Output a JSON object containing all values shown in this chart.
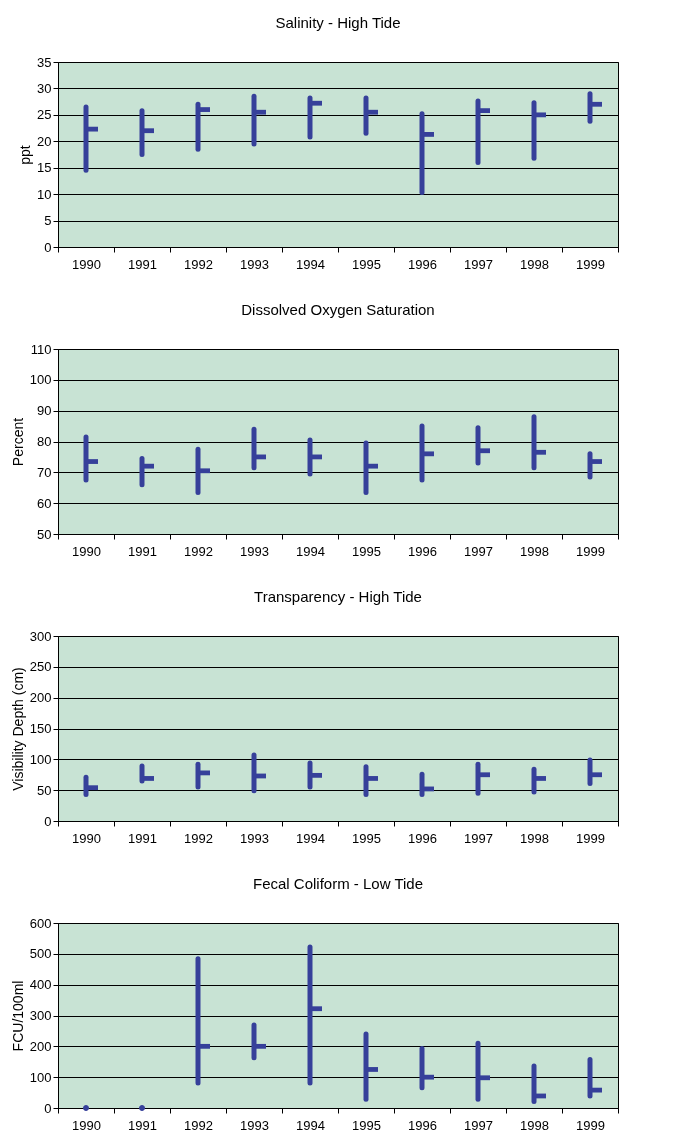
{
  "chart_data": [
    {
      "type": "scatter",
      "title": "Salinity - High Tide",
      "ylabel": "ppt",
      "categories": [
        "1990",
        "1991",
        "1992",
        "1993",
        "1994",
        "1995",
        "1996",
        "1997",
        "1998",
        "1999"
      ],
      "values": [
        22.3,
        22,
        26,
        25.5,
        27.2,
        25.5,
        21.3,
        25.8,
        25,
        27
      ],
      "errors": [
        [
          14.5,
          26.5
        ],
        [
          17.5,
          25.8
        ],
        [
          18.5,
          27
        ],
        [
          19.5,
          28.5
        ],
        [
          20.8,
          28.2
        ],
        [
          21.5,
          28.2
        ],
        [
          10.3,
          25.2
        ],
        [
          16,
          27.6
        ],
        [
          16.8,
          27.3
        ],
        [
          23.8,
          29
        ]
      ],
      "color": "#36409a",
      "ylim": [
        0,
        35
      ],
      "yticks": [
        0,
        5,
        10,
        15,
        20,
        25,
        30,
        35
      ],
      "grid": "y",
      "legend": false
    },
    {
      "type": "scatter",
      "title": "Dissolved Oxygen Saturation",
      "ylabel": "Percent",
      "categories": [
        "1990",
        "1991",
        "1992",
        "1993",
        "1994",
        "1995",
        "1996",
        "1997",
        "1998",
        "1999"
      ],
      "values": [
        73.5,
        72,
        70.5,
        75,
        75,
        72,
        76,
        77,
        76.5,
        73.5
      ],
      "errors": [
        [
          67.5,
          81.5
        ],
        [
          66,
          74.5
        ],
        [
          63.5,
          77.5
        ],
        [
          71.5,
          84
        ],
        [
          69.5,
          80.5
        ],
        [
          63.5,
          79.5
        ],
        [
          67.5,
          85
        ],
        [
          73,
          84.5
        ],
        [
          71.5,
          88
        ],
        [
          68.5,
          76
        ]
      ],
      "color": "#36409a",
      "ylim": [
        50,
        110
      ],
      "yticks": [
        50,
        60,
        70,
        80,
        90,
        100,
        110
      ],
      "grid": "y",
      "legend": false
    },
    {
      "type": "scatter",
      "title": "Transparency - High Tide",
      "ylabel": "Visibility Depth (cm)",
      "categories": [
        "1990",
        "1991",
        "1992",
        "1993",
        "1994",
        "1995",
        "1996",
        "1997",
        "1998",
        "1999"
      ],
      "values": [
        54,
        69,
        78,
        73,
        74,
        69,
        52,
        75,
        69,
        75
      ],
      "errors": [
        [
          43,
          71
        ],
        [
          65,
          89
        ],
        [
          55,
          92
        ],
        [
          49,
          107
        ],
        [
          55,
          94
        ],
        [
          43,
          88
        ],
        [
          43,
          76
        ],
        [
          45,
          92
        ],
        [
          47,
          84
        ],
        [
          61,
          99
        ]
      ],
      "color": "#36409a",
      "ylim": [
        0,
        300
      ],
      "yticks": [
        0,
        50,
        100,
        150,
        200,
        250,
        300
      ],
      "grid": "y",
      "legend": false
    },
    {
      "type": "scatter",
      "title": "Fecal Coliform - Low Tide",
      "ylabel": "FCU/100ml",
      "categories": [
        "1990",
        "1991",
        "1992",
        "1993",
        "1994",
        "1995",
        "1996",
        "1997",
        "1998",
        "1999"
      ],
      "values": [
        0,
        0,
        200,
        200,
        322,
        125,
        100,
        98,
        39,
        58
      ],
      "errors": [
        null,
        null,
        [
          81,
          484
        ],
        [
          163,
          269
        ],
        [
          81,
          522
        ],
        [
          28,
          240
        ],
        [
          66,
          193
        ],
        [
          28,
          210
        ],
        [
          21,
          136
        ],
        [
          39,
          157
        ]
      ],
      "color": "#36409a",
      "ylim": [
        0,
        600
      ],
      "yticks": [
        0,
        100,
        200,
        300,
        400,
        500,
        600
      ],
      "grid": "y",
      "legend": false
    }
  ]
}
